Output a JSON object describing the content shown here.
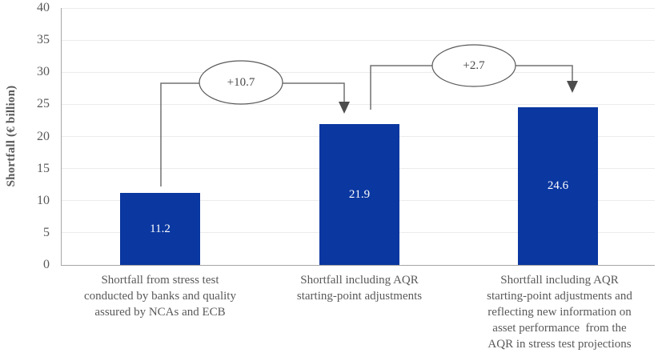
{
  "chart_data": {
    "type": "bar",
    "title": "",
    "xlabel": "",
    "ylabel": "Shortfall (€ billion)",
    "ylim": [
      0,
      40
    ],
    "y_ticks": [
      0,
      5,
      10,
      15,
      20,
      25,
      30,
      35,
      40
    ],
    "grid": "horizontal",
    "legend": "none",
    "categories": [
      "Shortfall from stress test\nconducted by banks and quality\nassured by NCAs and ECB",
      "Shortfall including AQR\nstarting-point adjustments",
      "Shortfall including AQR\nstarting-point adjustments and\nreflecting new information on\nasset performance  from the\nAQR in stress test projections"
    ],
    "values": [
      11.2,
      21.9,
      24.6
    ],
    "bar_labels": [
      "11.2",
      "21.9",
      "24.6"
    ],
    "annotations": [
      {
        "label": "+10.7",
        "from_bar": 1,
        "to_bar": 2
      },
      {
        "label": "+2.7",
        "from_bar": 2,
        "to_bar": 3
      }
    ],
    "colors": {
      "bar": "#0a37a0",
      "bar_value_text": "#ffffff",
      "axis_line": "#a6a6a6",
      "gridline": "#ebebeb",
      "text": "#595959",
      "connector_line": "#707070",
      "arrowhead": "#4d4d4d",
      "ellipse_fill": "#ffffff",
      "ellipse_border": "#595959"
    }
  }
}
